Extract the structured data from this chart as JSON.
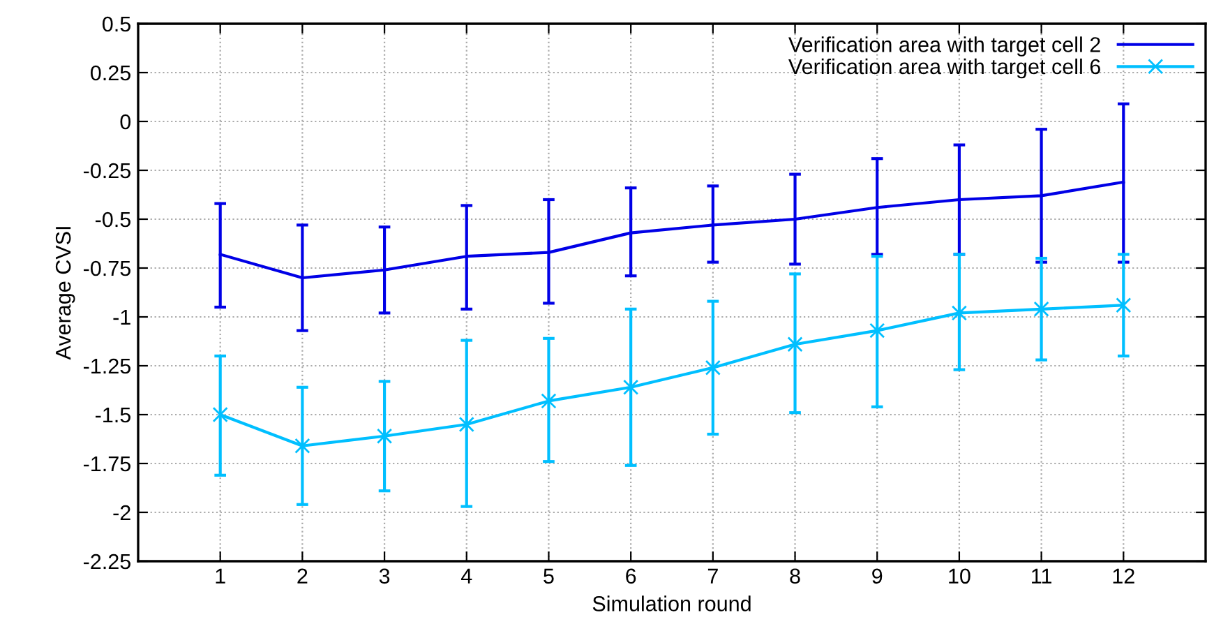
{
  "chart_data": {
    "type": "line",
    "xlabel": "Simulation round",
    "ylabel": "Average CVSI",
    "x": [
      1,
      2,
      3,
      4,
      5,
      6,
      7,
      8,
      9,
      10,
      11,
      12
    ],
    "xlim": [
      0,
      13
    ],
    "xticks": [
      1,
      2,
      3,
      4,
      5,
      6,
      7,
      8,
      9,
      10,
      11,
      12
    ],
    "ylim": [
      -2.25,
      0.5
    ],
    "yticks": [
      -2.25,
      -2,
      -1.75,
      -1.5,
      -1.25,
      -1,
      -0.75,
      -0.5,
      -0.25,
      0,
      0.25,
      0.5
    ],
    "grid": true,
    "legend": "top right",
    "series": [
      {
        "name": "Verification area with target cell 2",
        "color": "#0000e6",
        "marker": "none",
        "values": [
          -0.68,
          -0.8,
          -0.76,
          -0.69,
          -0.67,
          -0.57,
          -0.53,
          -0.5,
          -0.44,
          -0.4,
          -0.38,
          -0.31
        ],
        "errors": [
          [
            -0.95,
            -0.42
          ],
          [
            -1.07,
            -0.53
          ],
          [
            -0.98,
            -0.54
          ],
          [
            -0.96,
            -0.43
          ],
          [
            -0.93,
            -0.4
          ],
          [
            -0.79,
            -0.34
          ],
          [
            -0.72,
            -0.33
          ],
          [
            -0.73,
            -0.27
          ],
          [
            -0.68,
            -0.19
          ],
          [
            -0.68,
            -0.12
          ],
          [
            -0.72,
            -0.04
          ],
          [
            -0.72,
            0.09
          ]
        ]
      },
      {
        "name": "Verification area with target cell 6",
        "color": "#00bfff",
        "marker": "cross",
        "values": [
          -1.5,
          -1.66,
          -1.61,
          -1.55,
          -1.43,
          -1.36,
          -1.26,
          -1.14,
          -1.07,
          -0.98,
          -0.96,
          -0.94
        ],
        "errors": [
          [
            -1.81,
            -1.2
          ],
          [
            -1.96,
            -1.36
          ],
          [
            -1.89,
            -1.33
          ],
          [
            -1.97,
            -1.12
          ],
          [
            -1.74,
            -1.11
          ],
          [
            -1.76,
            -0.96
          ],
          [
            -1.6,
            -0.92
          ],
          [
            -1.49,
            -0.78
          ],
          [
            -1.46,
            -0.69
          ],
          [
            -1.27,
            -0.68
          ],
          [
            -1.22,
            -0.7
          ],
          [
            -1.2,
            -0.68
          ]
        ]
      }
    ]
  }
}
